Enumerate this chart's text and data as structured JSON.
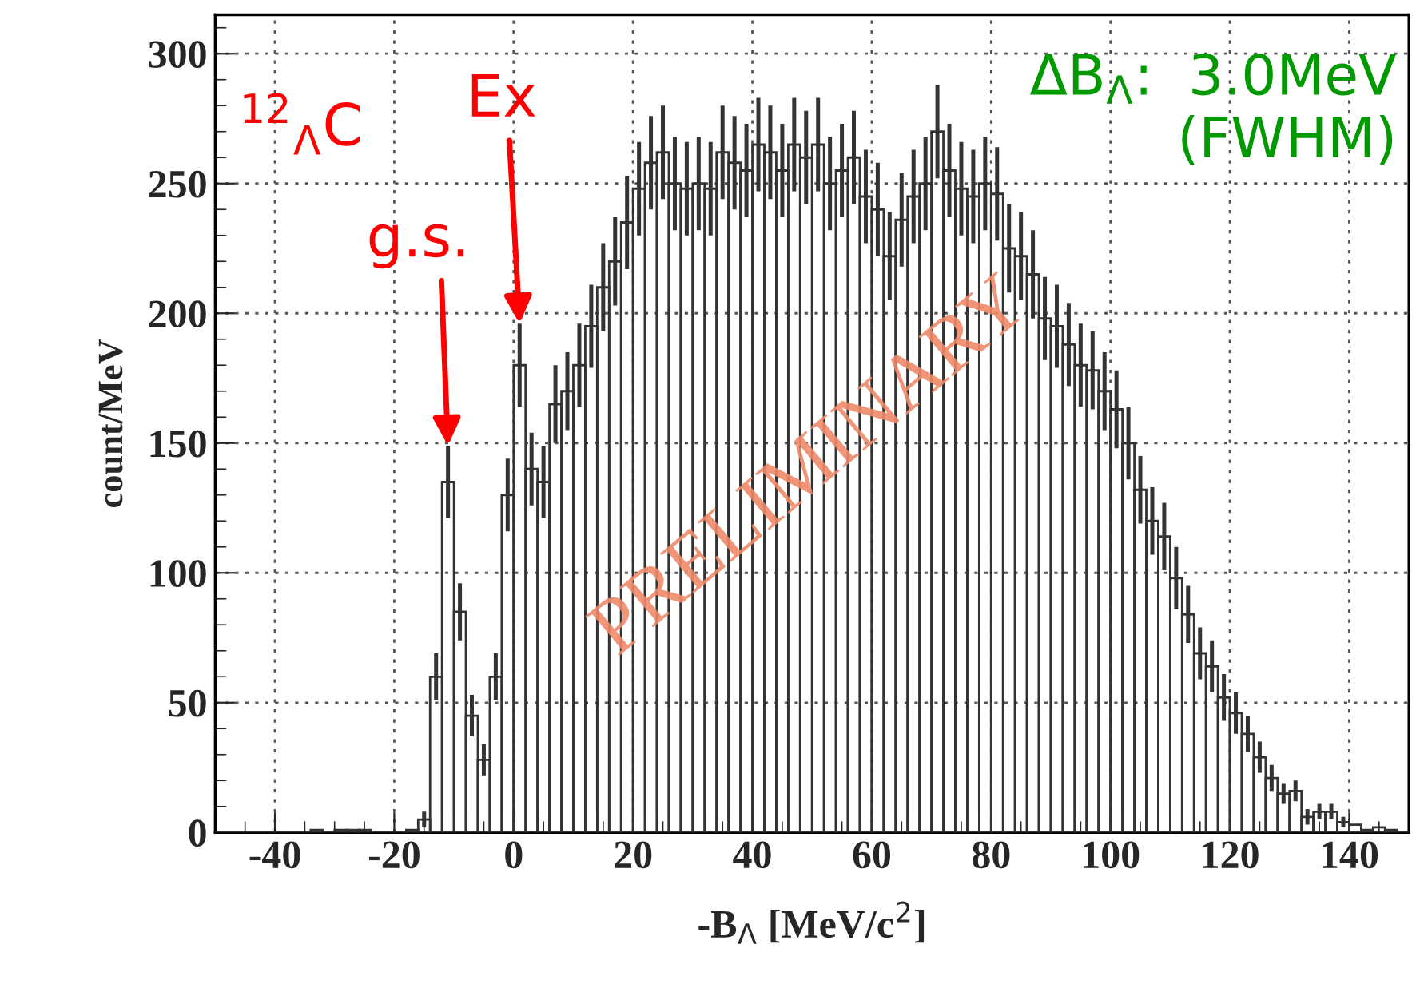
{
  "chart_data": {
    "type": "histogram",
    "xlabel": "-B$_{Λ}$ [MeV/c$^{2}$]",
    "ylabel": "count/MeV",
    "bins": [
      -50,
      -48,
      -46,
      -44,
      -42,
      -40,
      -38,
      -36,
      -34,
      -32,
      -30,
      -28,
      -26,
      -24,
      -22,
      -20,
      -18,
      -16,
      -14,
      -12,
      -10,
      -8,
      -6,
      -4,
      -2,
      0,
      2,
      4,
      6,
      8,
      10,
      12,
      14,
      16,
      18,
      20,
      22,
      24,
      26,
      28,
      30,
      32,
      34,
      36,
      38,
      40,
      42,
      44,
      46,
      48,
      50,
      52,
      54,
      56,
      58,
      60,
      62,
      64,
      66,
      68,
      70,
      72,
      74,
      76,
      78,
      80,
      82,
      84,
      86,
      88,
      90,
      92,
      94,
      96,
      98,
      100,
      102,
      104,
      106,
      108,
      110,
      112,
      114,
      116,
      118,
      120,
      122,
      124,
      126,
      128,
      130,
      132,
      134,
      136,
      138,
      140,
      142,
      144,
      146,
      148,
      150
    ],
    "values": [
      0,
      0,
      0,
      0,
      0,
      0,
      0,
      0,
      1,
      0,
      1,
      1,
      1,
      0,
      0,
      0,
      1,
      5,
      60,
      135,
      85,
      45,
      28,
      60,
      130,
      180,
      140,
      135,
      165,
      170,
      180,
      195,
      210,
      220,
      235,
      248,
      258,
      262,
      250,
      248,
      250,
      248,
      262,
      258,
      255,
      265,
      262,
      255,
      265,
      260,
      265,
      250,
      255,
      260,
      245,
      240,
      222,
      236,
      245,
      250,
      270,
      255,
      248,
      245,
      250,
      246,
      225,
      222,
      215,
      198,
      195,
      188,
      180,
      178,
      170,
      163,
      150,
      132,
      120,
      114,
      98,
      84,
      69,
      64,
      52,
      46,
      38,
      29,
      21,
      15,
      16,
      6,
      8,
      8,
      4,
      3,
      1,
      2,
      1,
      0
    ],
    "errors": [
      null,
      null,
      null,
      null,
      null,
      null,
      null,
      null,
      null,
      null,
      null,
      null,
      null,
      null,
      null,
      null,
      null,
      3,
      9,
      14,
      11,
      8,
      6,
      9,
      14,
      16,
      14,
      14,
      15,
      15,
      16,
      16,
      17,
      17,
      18,
      18,
      18,
      18,
      18,
      18,
      18,
      18,
      18,
      18,
      18,
      18,
      18,
      18,
      18,
      18,
      18,
      18,
      18,
      18,
      18,
      18,
      17,
      18,
      18,
      18,
      18,
      18,
      18,
      18,
      18,
      18,
      17,
      17,
      17,
      16,
      16,
      16,
      16,
      15,
      15,
      15,
      14,
      13,
      13,
      13,
      12,
      11,
      10,
      10,
      9,
      8,
      7,
      6,
      5,
      4,
      4,
      3,
      3,
      3,
      2,
      null,
      null,
      null,
      null,
      null
    ],
    "color": "#333333",
    "xlim": [
      -50,
      150
    ],
    "ylim": [
      0,
      315
    ],
    "xticks": [
      -40,
      -20,
      0,
      20,
      40,
      60,
      80,
      100,
      120,
      140
    ],
    "yticks": [
      0,
      50,
      100,
      150,
      200,
      250,
      300
    ],
    "grid": true,
    "annotations": [
      "$^{12}$$_{Λ}$C",
      {
        "text": "Ex",
        "x": 1,
        "y": 196
      },
      {
        "text": "g.s.",
        "x": -11,
        "y": 149
      },
      "ΔB$_{Λ}$:  3.0MeV\n(FWHM)",
      "PRELIMINARY"
    ]
  }
}
